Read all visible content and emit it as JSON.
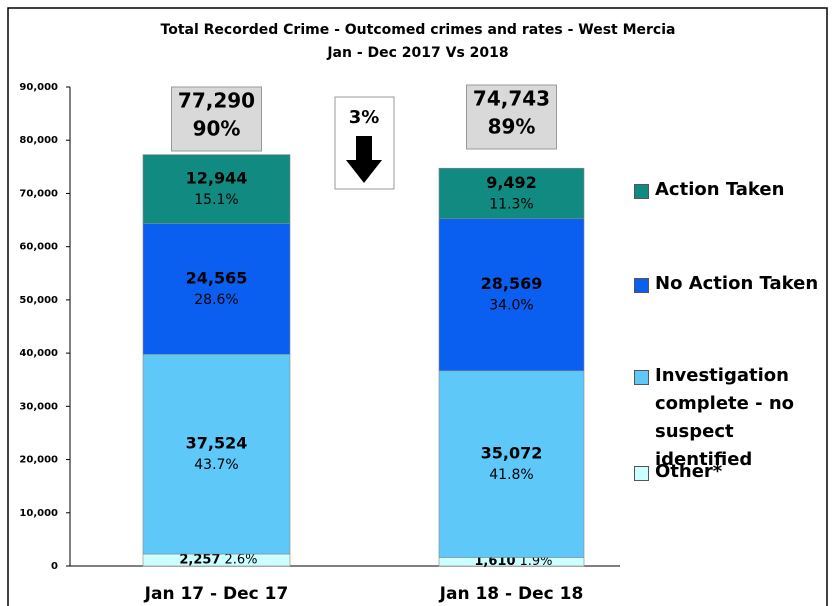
{
  "chart_data": {
    "type": "stacked_bar",
    "title": "Total Recorded Crime - Outcomed crimes and rates - West Mercia",
    "subtitle": "Jan - Dec 2017 Vs 2018",
    "categories": [
      "Jan 17 - Dec 17",
      "Jan 18 - Dec 18"
    ],
    "series": [
      {
        "name": "Other*",
        "color": "#ccffff",
        "values": [
          2257,
          1610
        ],
        "value_labels": [
          "2,257",
          "1,610"
        ],
        "percents": [
          2.6,
          1.9
        ],
        "percent_labels": [
          "2.6%",
          "1.9%"
        ]
      },
      {
        "name": "Investigation complete - no suspect identified",
        "color": "#5ec8f8",
        "values": [
          37524,
          35072
        ],
        "value_labels": [
          "37,524",
          "35,072"
        ],
        "percents": [
          43.7,
          41.8
        ],
        "percent_labels": [
          "43.7%",
          "41.8%"
        ]
      },
      {
        "name": "No Action Taken",
        "color": "#0a5ff0",
        "values": [
          24565,
          28569
        ],
        "value_labels": [
          "24,565",
          "28,569"
        ],
        "percents": [
          28.6,
          34.0
        ],
        "percent_labels": [
          "28.6%",
          "34.0%"
        ]
      },
      {
        "name": "Action Taken",
        "color": "#118a82",
        "values": [
          12944,
          9492
        ],
        "value_labels": [
          "12,944",
          "9,492"
        ],
        "percents": [
          15.1,
          11.3
        ],
        "percent_labels": [
          "15.1%",
          "11.3%"
        ]
      }
    ],
    "totals": [
      77290,
      74743
    ],
    "total_labels": [
      "77,290",
      "74,743"
    ],
    "total_rates": [
      90,
      89
    ],
    "total_rate_labels": [
      "90%",
      "89%"
    ],
    "change": {
      "value": 3,
      "label": "3%"
    },
    "ylim": [
      0,
      90000
    ],
    "yticks": [
      0,
      {
        "value": 10000,
        "label": "10,000"
      },
      {
        "value": 20000,
        "label": "20,000"
      },
      {
        "value": 30000,
        "label": "30,000"
      },
      {
        "value": 40000,
        "label": "40,000"
      },
      {
        "value": 50000,
        "label": "50,000"
      },
      {
        "value": 60000,
        "label": "60,000"
      },
      {
        "value": 70000,
        "label": "70,000"
      },
      {
        "value": 80000,
        "label": "80,000"
      },
      {
        "value": 90000,
        "label": "90,000"
      }
    ],
    "legend": "right",
    "grid": false
  }
}
